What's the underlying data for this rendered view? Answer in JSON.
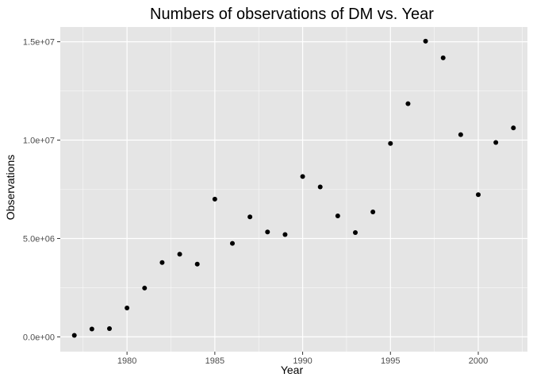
{
  "chart_data": {
    "type": "scatter",
    "title": "Numbers of observations of DM vs. Year",
    "xlabel": "Year",
    "ylabel": "Observations",
    "xlim": [
      1976.2,
      2002.8
    ],
    "ylim": [
      -750000,
      15750000
    ],
    "x_ticks": [
      1980,
      1985,
      1990,
      1995,
      2000
    ],
    "x_tick_labels": [
      "1980",
      "1985",
      "1990",
      "1995",
      "2000"
    ],
    "y_ticks": [
      0,
      5000000,
      10000000,
      15000000
    ],
    "y_tick_labels": [
      "0.0e+00",
      "5.0e+06",
      "1.0e+07",
      "1.5e+07"
    ],
    "grid": true,
    "panel_color": "#e5e5e5",
    "grid_color": "#ffffff",
    "point_color": "#000000",
    "points": [
      {
        "x": 1977,
        "y": 75000
      },
      {
        "x": 1978,
        "y": 400000
      },
      {
        "x": 1979,
        "y": 420000
      },
      {
        "x": 1980,
        "y": 1470000
      },
      {
        "x": 1981,
        "y": 2480000
      },
      {
        "x": 1982,
        "y": 3780000
      },
      {
        "x": 1983,
        "y": 4200000
      },
      {
        "x": 1984,
        "y": 3700000
      },
      {
        "x": 1985,
        "y": 7000000
      },
      {
        "x": 1986,
        "y": 4750000
      },
      {
        "x": 1987,
        "y": 6100000
      },
      {
        "x": 1988,
        "y": 5330000
      },
      {
        "x": 1989,
        "y": 5200000
      },
      {
        "x": 1990,
        "y": 8150000
      },
      {
        "x": 1991,
        "y": 7620000
      },
      {
        "x": 1992,
        "y": 6150000
      },
      {
        "x": 1993,
        "y": 5300000
      },
      {
        "x": 1994,
        "y": 6350000
      },
      {
        "x": 1995,
        "y": 9830000
      },
      {
        "x": 1996,
        "y": 11850000
      },
      {
        "x": 1997,
        "y": 15030000
      },
      {
        "x": 1998,
        "y": 14180000
      },
      {
        "x": 1999,
        "y": 10280000
      },
      {
        "x": 2000,
        "y": 7230000
      },
      {
        "x": 2001,
        "y": 9880000
      },
      {
        "x": 2002,
        "y": 10620000
      }
    ]
  }
}
